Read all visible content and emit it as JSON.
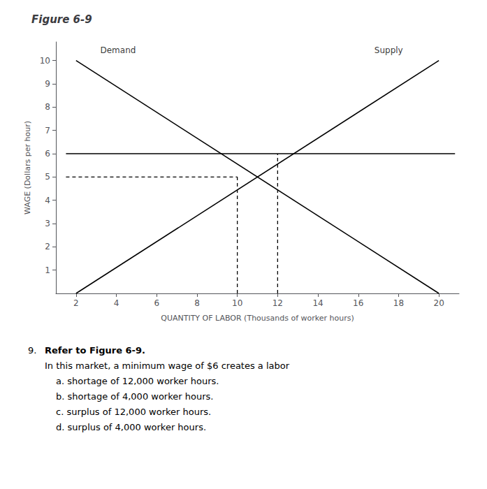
{
  "chart_data": {
    "type": "line",
    "title": "Figure 6-9",
    "xlabel": "QUANTITY OF LABOR (Thousands of worker hours)",
    "ylabel": "WAGE (Dollars per hour)",
    "xlim": [
      1,
      21
    ],
    "ylim": [
      0,
      10.8
    ],
    "xticks": [
      2,
      4,
      6,
      8,
      10,
      12,
      14,
      16,
      18,
      20
    ],
    "yticks": [
      1,
      2,
      3,
      4,
      5,
      6,
      7,
      8,
      9,
      10
    ],
    "grid": false,
    "series": [
      {
        "x": [
          2,
          20
        ],
        "values": [
          10,
          0
        ],
        "color": "#000000"
      },
      {
        "x": [
          2,
          20
        ],
        "values": [
          0,
          10
        ],
        "color": "#000000"
      },
      {
        "x": [
          1.5,
          20.8
        ],
        "values": [
          6,
          6
        ],
        "color": "#000000"
      },
      {
        "x": [
          1.5,
          10
        ],
        "values": [
          5,
          5
        ],
        "color": "#000000",
        "line_style": "dashed"
      },
      {
        "x": [
          10,
          10
        ],
        "values": [
          0,
          5
        ],
        "color": "#000000",
        "line_style": "dashed"
      },
      {
        "x": [
          12,
          12
        ],
        "values": [
          0,
          6
        ],
        "color": "#000000",
        "line_style": "dashed"
      }
    ],
    "annotations": [
      {
        "text": "Demand",
        "x": 3.2,
        "y": 10.25
      },
      {
        "text": "Supply",
        "x": 16.8,
        "y": 10.25
      }
    ],
    "question_number": "9.",
    "question_bold": "Refer to Figure 6-9.",
    "question_text": "In this market, a minimum wage of $6 creates a labor",
    "answers": [
      "a. shortage of 12,000 worker hours.",
      "b. shortage of 4,000 worker hours.",
      "c. surplus of 12,000 worker hours.",
      "d. surplus of 4,000 worker hours."
    ]
  }
}
